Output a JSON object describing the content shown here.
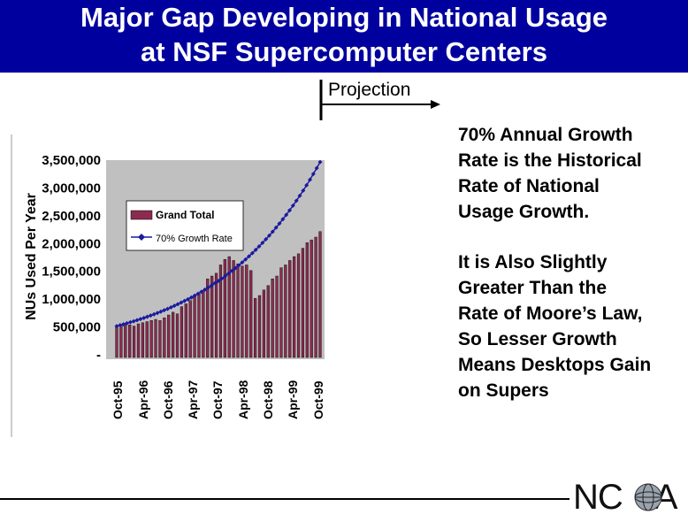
{
  "header": {
    "title_line1": "Major Gap Developing in National Usage",
    "title_line2": "at NSF Supercomputer Centers"
  },
  "projection": {
    "label": "Projection"
  },
  "notes": {
    "para1": [
      "70%  Annual Growth",
      "Rate is the Historical",
      "Rate of National",
      "Usage Growth."
    ],
    "para2": [
      "It is Also Slightly",
      "Greater Than the",
      "Rate of Moore’s Law,",
      "So Lesser Growth",
      "Means Desktops Gain",
      "on Supers"
    ]
  },
  "logo": {
    "letters_left": "NC",
    "letters_right": "A"
  },
  "colors": {
    "header_bg": "#00009e",
    "bar": "#8b2b4f",
    "line": "#1a1aa0",
    "plot_bg": "#c0c0c0"
  },
  "chart_data": {
    "type": "bar",
    "ylabel": "NUs Used Per Year",
    "ylim": [
      0,
      3500000
    ],
    "y_ticks": [
      "-",
      "500,000",
      "1,000,000",
      "1,500,000",
      "2,000,000",
      "2,500,000",
      "3,000,000",
      "3,500,000"
    ],
    "x_ticks": [
      "Oct-95",
      "Apr-96",
      "Oct-96",
      "Apr-97",
      "Oct-97",
      "Apr-98",
      "Oct-98",
      "Apr-99",
      "Oct-99"
    ],
    "series": [
      {
        "name": "Grand Total",
        "type": "bar",
        "values": [
          500000,
          530000,
          540000,
          520000,
          500000,
          540000,
          560000,
          580000,
          600000,
          620000,
          600000,
          650000,
          700000,
          750000,
          720000,
          850000,
          900000,
          960000,
          1050000,
          1080000,
          1120000,
          1350000,
          1400000,
          1450000,
          1600000,
          1700000,
          1750000,
          1680000,
          1620000,
          1580000,
          1600000,
          1500000,
          1000000,
          1050000,
          1150000,
          1230000,
          1350000,
          1400000,
          1550000,
          1600000,
          1680000,
          1750000,
          1800000,
          1900000,
          2000000,
          2050000,
          2100000,
          2200000
        ]
      },
      {
        "name": "70% Growth Rate",
        "type": "line",
        "start": 500000,
        "end": 3450000
      }
    ],
    "legend": "inside top-left"
  }
}
